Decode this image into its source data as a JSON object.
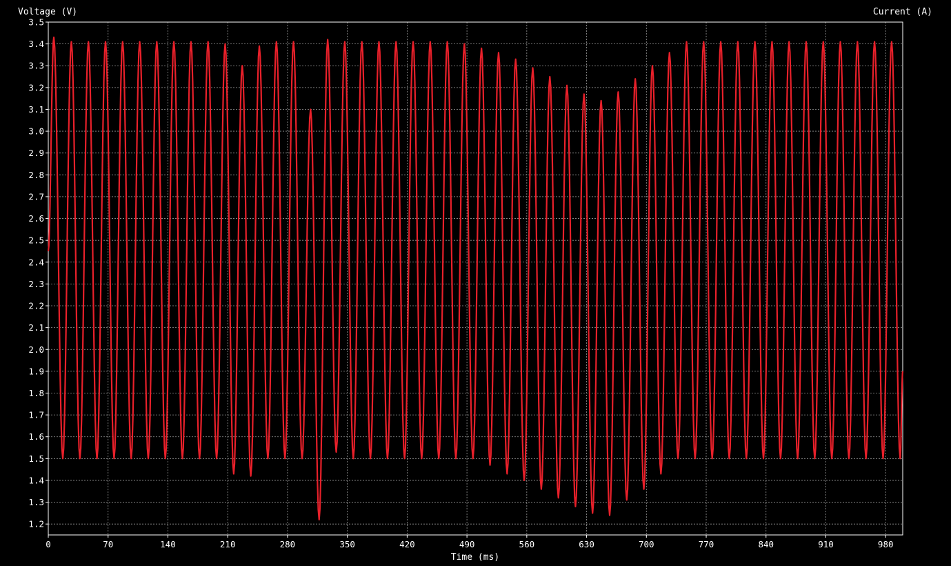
{
  "chart_data": {
    "type": "line",
    "left_axis_label": "Voltage (V)",
    "right_axis_label": "Current (A)",
    "xlabel": "Time (ms)",
    "xlim": [
      0,
      1000
    ],
    "ylim": [
      1.15,
      3.5
    ],
    "x_ticks": [
      0,
      70,
      140,
      210,
      280,
      350,
      420,
      490,
      560,
      630,
      700,
      770,
      840,
      910,
      980
    ],
    "y_ticks": [
      "3.5",
      "3.4",
      "3.3",
      "3.2",
      "3.1",
      "3.0",
      "2.9",
      "2.8",
      "2.7",
      "2.6",
      "2.5",
      "2.4",
      "2.3",
      "2.2",
      "2.1",
      "2.0",
      "1.9",
      "1.8",
      "1.7",
      "1.6",
      "1.5",
      "1.4",
      "1.3",
      "1.2"
    ],
    "grid": true,
    "colors": {
      "background": "#000000",
      "series": "#e8202a",
      "grid": "#9a9a9a",
      "axis": "#ffffff"
    },
    "series": [
      {
        "peaks_x": [
          6.5,
          27,
          47,
          67,
          87,
          107,
          127,
          147,
          167,
          187,
          207,
          227,
          247,
          267,
          287,
          307,
          327,
          347,
          367,
          387,
          407,
          427,
          447,
          467,
          487,
          507,
          527,
          547,
          567,
          587,
          607,
          627,
          647,
          667,
          687,
          707,
          727,
          747,
          767,
          787,
          807,
          827,
          847,
          867,
          887,
          907,
          927,
          947,
          967,
          987
        ],
        "peaks_y": [
          3.43,
          3.41,
          3.41,
          3.41,
          3.41,
          3.41,
          3.41,
          3.41,
          3.41,
          3.41,
          3.4,
          3.3,
          3.39,
          3.41,
          3.41,
          3.1,
          3.42,
          3.41,
          3.41,
          3.41,
          3.41,
          3.41,
          3.41,
          3.41,
          3.4,
          3.38,
          3.36,
          3.33,
          3.29,
          3.25,
          3.21,
          3.17,
          3.14,
          3.18,
          3.24,
          3.3,
          3.36,
          3.41,
          3.41,
          3.41,
          3.41,
          3.41,
          3.41,
          3.41,
          3.41,
          3.41,
          3.41,
          3.41,
          3.41,
          3.41
        ],
        "troughs_x": [
          17,
          37,
          57,
          77,
          97,
          117,
          137,
          157,
          177,
          197,
          217,
          237,
          257,
          277,
          297,
          317,
          337,
          357,
          377,
          397,
          417,
          437,
          457,
          477,
          497,
          517,
          537,
          557,
          577,
          597,
          617,
          637,
          657,
          677,
          697,
          717,
          737,
          757,
          777,
          797,
          817,
          837,
          857,
          877,
          897,
          917,
          937,
          957,
          977,
          997
        ],
        "troughs_y": [
          1.5,
          1.5,
          1.5,
          1.5,
          1.5,
          1.5,
          1.5,
          1.5,
          1.5,
          1.5,
          1.43,
          1.42,
          1.5,
          1.5,
          1.5,
          1.22,
          1.53,
          1.5,
          1.5,
          1.5,
          1.5,
          1.5,
          1.5,
          1.5,
          1.5,
          1.47,
          1.43,
          1.4,
          1.36,
          1.32,
          1.28,
          1.25,
          1.24,
          1.31,
          1.36,
          1.43,
          1.5,
          1.5,
          1.5,
          1.5,
          1.5,
          1.5,
          1.5,
          1.5,
          1.5,
          1.5,
          1.5,
          1.5,
          1.5,
          1.5
        ],
        "start_y": 2.45,
        "end_y": 1.9
      }
    ]
  }
}
